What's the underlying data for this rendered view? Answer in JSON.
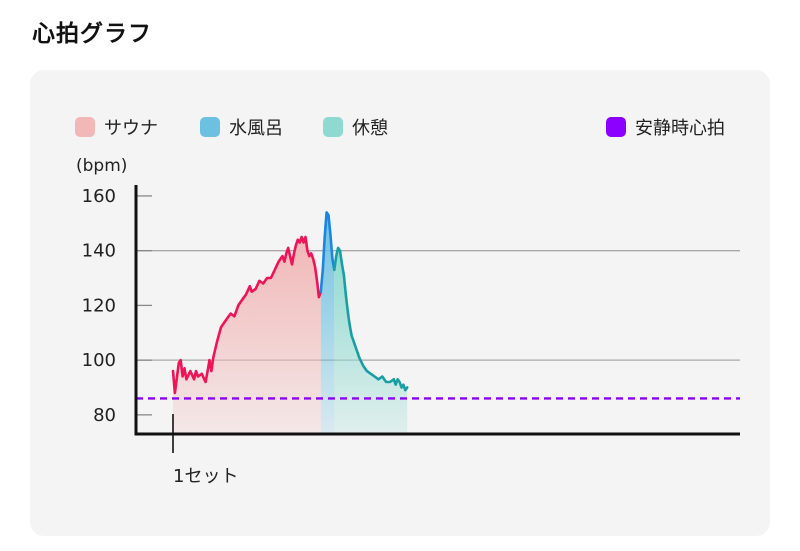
{
  "page": {
    "title": "心拍グラフ"
  },
  "chart_data": {
    "type": "line",
    "title": "",
    "ylabel": "(bpm)",
    "xlabel": "",
    "ylim": [
      73,
      164
    ],
    "yticks": [
      160,
      140,
      120,
      100,
      80
    ],
    "gridlines_at": [
      140,
      100
    ],
    "grid": true,
    "legend_position": "top",
    "set_markers": [
      {
        "label": "1セット",
        "at": 0
      }
    ],
    "resting_hr": {
      "name": "安静時心拍",
      "value": 86,
      "color": "#8b00ff"
    },
    "series": [
      {
        "name": "サウナ",
        "color": "#ef1457",
        "fill": "#f2b7b7",
        "points": [
          [
            0,
            96
          ],
          [
            1,
            88
          ],
          [
            3,
            99
          ],
          [
            4,
            100
          ],
          [
            5,
            94
          ],
          [
            6,
            97
          ],
          [
            7,
            93
          ],
          [
            9,
            96
          ],
          [
            11,
            93
          ],
          [
            12,
            96
          ],
          [
            13,
            94
          ],
          [
            15,
            95
          ],
          [
            17,
            92
          ],
          [
            18,
            96
          ],
          [
            19,
            100
          ],
          [
            20,
            96
          ],
          [
            21,
            101
          ],
          [
            23,
            107
          ],
          [
            25,
            112
          ],
          [
            27,
            114
          ],
          [
            29,
            116
          ],
          [
            30,
            117
          ],
          [
            32,
            116
          ],
          [
            34,
            120
          ],
          [
            36,
            122
          ],
          [
            38,
            124
          ],
          [
            40,
            127
          ],
          [
            41,
            125
          ],
          [
            43,
            126
          ],
          [
            45,
            129
          ],
          [
            47,
            128
          ],
          [
            49,
            130
          ],
          [
            51,
            130
          ],
          [
            53,
            133
          ],
          [
            55,
            136
          ],
          [
            57,
            138
          ],
          [
            58,
            136
          ],
          [
            59,
            139
          ],
          [
            60,
            141
          ],
          [
            61,
            138
          ],
          [
            62,
            135
          ],
          [
            63,
            139
          ],
          [
            64,
            142
          ],
          [
            65,
            144
          ],
          [
            66,
            143
          ],
          [
            67,
            145
          ],
          [
            68,
            143
          ],
          [
            69,
            145
          ],
          [
            70,
            140
          ],
          [
            71,
            138
          ],
          [
            72,
            139
          ],
          [
            73,
            137
          ],
          [
            74,
            134
          ],
          [
            75,
            129
          ],
          [
            76,
            123
          ],
          [
            77,
            125
          ]
        ]
      },
      {
        "name": "水風呂",
        "color": "#1a86e3",
        "fill": "#6cc0e0",
        "points": [
          [
            77,
            125
          ],
          [
            78,
            133
          ],
          [
            79,
            145
          ],
          [
            80,
            154
          ],
          [
            81,
            153
          ],
          [
            82,
            146
          ],
          [
            83,
            137
          ],
          [
            84,
            133
          ]
        ]
      },
      {
        "name": "休憩",
        "color": "#189fa4",
        "fill": "#8fdad0",
        "points": [
          [
            84,
            133
          ],
          [
            85,
            138
          ],
          [
            86,
            141
          ],
          [
            87,
            140
          ],
          [
            88,
            135
          ],
          [
            89,
            131
          ],
          [
            90,
            124
          ],
          [
            91,
            118
          ],
          [
            92,
            113
          ],
          [
            93,
            109
          ],
          [
            95,
            105
          ],
          [
            97,
            101
          ],
          [
            99,
            98
          ],
          [
            101,
            96
          ],
          [
            103,
            95
          ],
          [
            105,
            94
          ],
          [
            107,
            93
          ],
          [
            109,
            94
          ],
          [
            111,
            92
          ],
          [
            113,
            92
          ],
          [
            115,
            93
          ],
          [
            116,
            91
          ],
          [
            117,
            93
          ],
          [
            118,
            92
          ],
          [
            119,
            90
          ],
          [
            120,
            91
          ],
          [
            121,
            89
          ],
          [
            122,
            90
          ]
        ]
      }
    ]
  }
}
